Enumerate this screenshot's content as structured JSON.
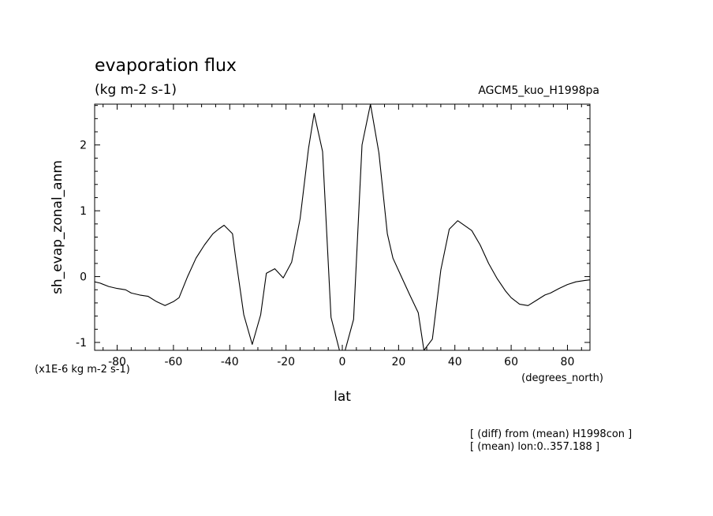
{
  "chart_data": {
    "type": "line",
    "title": "evaporation flux",
    "subtitle": "(kg m-2 s-1)",
    "model_label": "AGCM5_kuo_H1998pa",
    "xlabel": "lat",
    "xunit": "(degrees_north)",
    "ylabel": "sh_evap_zonal_anm",
    "yunit": "(x1E-6 kg m-2 s-1)",
    "xlim": [
      -88,
      88
    ],
    "ylim": [
      -1.12,
      2.62
    ],
    "xticks": [
      -80,
      -60,
      -40,
      -20,
      0,
      20,
      40,
      60,
      80
    ],
    "xtick_labels": [
      "-80",
      "-60",
      "-40",
      "-20",
      "0",
      "20",
      "40",
      "60",
      "80"
    ],
    "yticks": [
      -1,
      0,
      1,
      2
    ],
    "ytick_labels": [
      "-1",
      "0",
      "1",
      "2"
    ],
    "notes": [
      "[ (diff) from (mean) H1998con ]",
      "[ (mean) lon:0..357.188 ]"
    ],
    "grid": false,
    "series": [
      {
        "x": [
          -88,
          -86,
          -83,
          -80,
          -77,
          -75,
          -72,
          -69,
          -66,
          -63,
          -60,
          -58,
          -55,
          -52,
          -49,
          -46,
          -44,
          -42,
          -39,
          -38,
          -35,
          -32,
          -29,
          -27,
          -24,
          -21,
          -18,
          -15,
          -12,
          -10,
          -7,
          -4,
          -1,
          1,
          4,
          7,
          10,
          13,
          16,
          18,
          21,
          24,
          27,
          29,
          32,
          35,
          38,
          41,
          44,
          46,
          49,
          52,
          55,
          58,
          60,
          63,
          66,
          69,
          72,
          74,
          77,
          80,
          83,
          86,
          88
        ],
        "y": [
          -0.08,
          -0.1,
          -0.15,
          -0.18,
          -0.2,
          -0.25,
          -0.28,
          -0.3,
          -0.38,
          -0.44,
          -0.38,
          -0.32,
          0.0,
          0.28,
          0.48,
          0.65,
          0.72,
          0.78,
          0.65,
          0.32,
          -0.58,
          -1.03,
          -0.58,
          0.05,
          0.12,
          -0.02,
          0.22,
          0.88,
          1.95,
          2.48,
          1.9,
          -0.62,
          -1.12,
          -1.12,
          -0.65,
          2.0,
          2.62,
          1.88,
          0.65,
          0.28,
          0.0,
          -0.28,
          -0.55,
          -1.12,
          -0.95,
          0.1,
          0.72,
          0.85,
          0.76,
          0.7,
          0.48,
          0.2,
          -0.03,
          -0.22,
          -0.32,
          -0.42,
          -0.44,
          -0.36,
          -0.28,
          -0.25,
          -0.18,
          -0.12,
          -0.08,
          -0.06,
          -0.05
        ]
      }
    ]
  }
}
